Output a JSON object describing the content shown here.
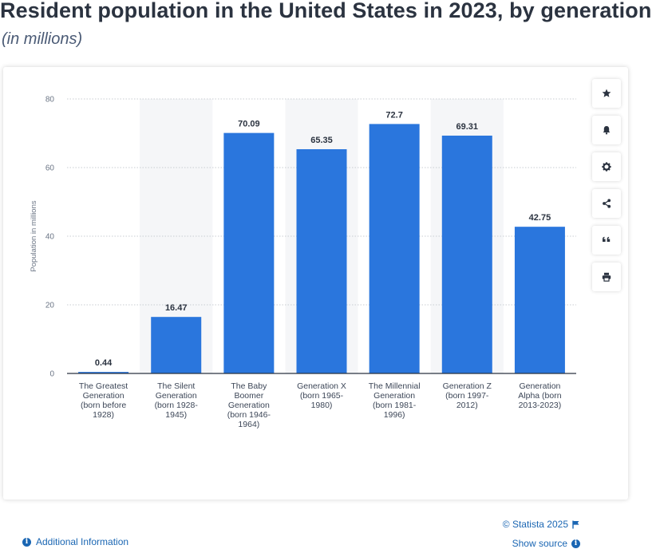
{
  "header": {
    "title": "Resident population in the United States in 2023, by generation",
    "subtitle": "(in millions)"
  },
  "toolbar": {
    "buttons": [
      {
        "icon": "star-icon"
      },
      {
        "icon": "bell-icon"
      },
      {
        "icon": "gear-icon"
      },
      {
        "icon": "share-icon"
      },
      {
        "icon": "quote-icon"
      },
      {
        "icon": "print-icon"
      }
    ]
  },
  "footer": {
    "credit": "© Statista 2025",
    "show_source": "Show source",
    "additional_info": "Additional Information"
  },
  "colors": {
    "bar": "#2a76dd",
    "grid": "#c8ccd2",
    "band": "#f5f6f8",
    "link": "#1a66b3"
  },
  "chart_data": {
    "type": "bar",
    "categories": [
      [
        "The Greatest",
        "Generation",
        "(born before",
        "1928)"
      ],
      [
        "The Silent",
        "Generation",
        "(born 1928-",
        "1945)"
      ],
      [
        "The Baby",
        "Boomer",
        "Generation",
        "(born 1946-",
        "1964)"
      ],
      [
        "Generation X",
        "(born 1965-",
        "1980)"
      ],
      [
        "The Millennial",
        "Generation",
        "(born 1981-",
        "1996)"
      ],
      [
        "Generation Z",
        "(born 1997-",
        "2012)"
      ],
      [
        "Generation",
        "Alpha (born",
        "2013-2023)"
      ]
    ],
    "values": [
      0.44,
      16.47,
      70.09,
      65.35,
      72.7,
      69.31,
      42.75
    ],
    "value_labels": [
      "0.44",
      "16.47",
      "70.09",
      "65.35",
      "72.7",
      "69.31",
      "42.75"
    ],
    "ylabel": "Population in millions",
    "ylim": [
      0,
      80
    ],
    "yticks": [
      "0",
      "20",
      "40",
      "60",
      "80"
    ],
    "grid": true,
    "alternating_bands": true
  }
}
